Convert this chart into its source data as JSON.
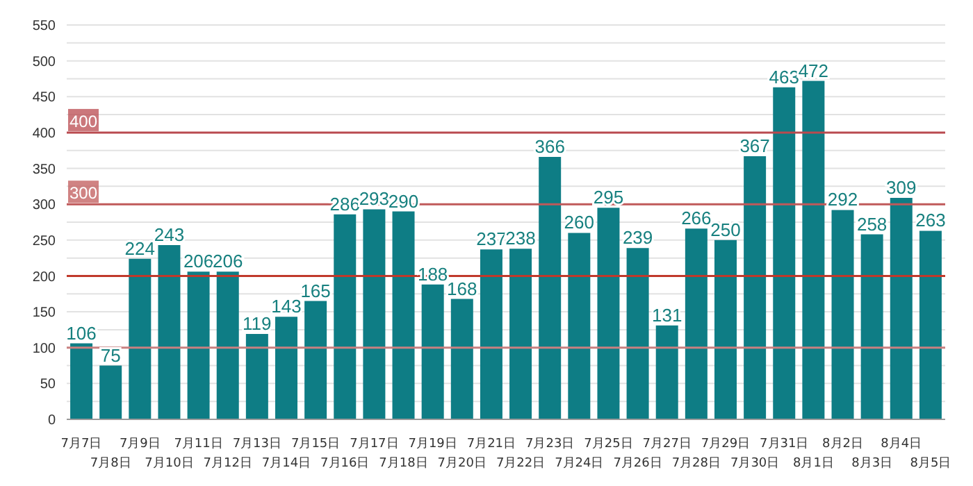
{
  "chart_data": {
    "type": "bar",
    "categories": [
      "7月7日",
      "7月8日",
      "7月9日",
      "7月10日",
      "7月11日",
      "7月12日",
      "7月13日",
      "7月14日",
      "7月15日",
      "7月16日",
      "7月17日",
      "7月18日",
      "7月19日",
      "7月20日",
      "7月21日",
      "7月22日",
      "7月23日",
      "7月24日",
      "7月25日",
      "7月26日",
      "7月27日",
      "7月28日",
      "7月29日",
      "7月30日",
      "7月31日",
      "8月1日",
      "8月2日",
      "8月3日",
      "8月4日",
      "8月5日"
    ],
    "values": [
      106,
      75,
      224,
      243,
      206,
      206,
      119,
      143,
      165,
      286,
      293,
      290,
      188,
      168,
      237,
      238,
      366,
      260,
      295,
      239,
      131,
      266,
      250,
      367,
      463,
      472,
      292,
      258,
      309,
      263
    ],
    "color": "#0e7d85",
    "data_labels": true,
    "ylim": [
      0,
      550
    ],
    "yticks": [
      0,
      {
        "value": 25,
        "label": null
      },
      50,
      {
        "value": 75,
        "label": null
      },
      100,
      {
        "value": 125,
        "label": null
      },
      150,
      {
        "value": 175,
        "label": null
      },
      200,
      {
        "value": 225,
        "label": null
      },
      250,
      {
        "value": 275,
        "label": null
      },
      300,
      {
        "value": 325,
        "label": null
      },
      350,
      {
        "value": 375,
        "label": null
      },
      400,
      {
        "value": 425,
        "label": null
      },
      450,
      {
        "value": 475,
        "label": null
      },
      500,
      {
        "value": 525,
        "label": null
      },
      550
    ],
    "grid": "y",
    "ref_lines": [
      {
        "axis": "y",
        "value": 100,
        "color": "#c98080"
      },
      {
        "axis": "y",
        "value": 200,
        "color": "#c0392b"
      },
      {
        "axis": "y",
        "value": 300,
        "label": "300",
        "color": "#c0595a"
      },
      {
        "axis": "y",
        "value": 400,
        "label": "400",
        "color": "#b94a4f"
      }
    ]
  }
}
